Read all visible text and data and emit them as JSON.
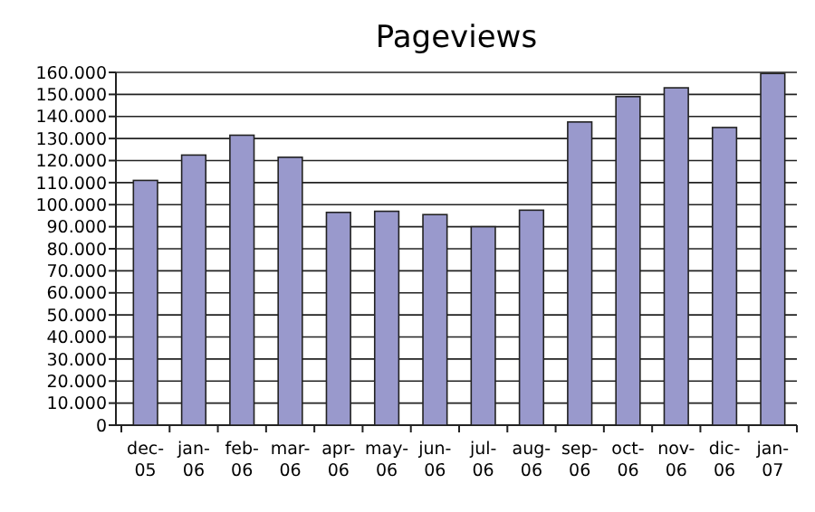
{
  "chart_data": {
    "type": "bar",
    "title": "Pageviews",
    "categories": [
      "dec-05",
      "jan-06",
      "feb-06",
      "mar-06",
      "apr-06",
      "may-06",
      "jun-06",
      "jul-06",
      "aug-06",
      "sep-06",
      "oct-06",
      "nov-06",
      "dic-06",
      "jan-07"
    ],
    "values": [
      111000,
      122500,
      131500,
      121500,
      96500,
      97000,
      95500,
      90000,
      97500,
      137500,
      149000,
      153000,
      135000,
      159500
    ],
    "color": "#9999cc",
    "ylim": [
      0,
      160000
    ],
    "yticks": [
      {
        "value": 0,
        "label": "0"
      },
      {
        "value": 10000,
        "label": "10.000"
      },
      {
        "value": 20000,
        "label": "20.000"
      },
      {
        "value": 30000,
        "label": "30.000"
      },
      {
        "value": 40000,
        "label": "40.000"
      },
      {
        "value": 50000,
        "label": "50.000"
      },
      {
        "value": 60000,
        "label": "60.000"
      },
      {
        "value": 70000,
        "label": "70.000"
      },
      {
        "value": 80000,
        "label": "80.000"
      },
      {
        "value": 90000,
        "label": "90.000"
      },
      {
        "value": 100000,
        "label": "100.000"
      },
      {
        "value": 110000,
        "label": "110.000"
      },
      {
        "value": 120000,
        "label": "120.000"
      },
      {
        "value": 130000,
        "label": "130.000"
      },
      {
        "value": 140000,
        "label": "140.000"
      },
      {
        "value": 150000,
        "label": "150.000"
      },
      {
        "value": 160000,
        "label": "160.000"
      }
    ],
    "grid": "y"
  }
}
